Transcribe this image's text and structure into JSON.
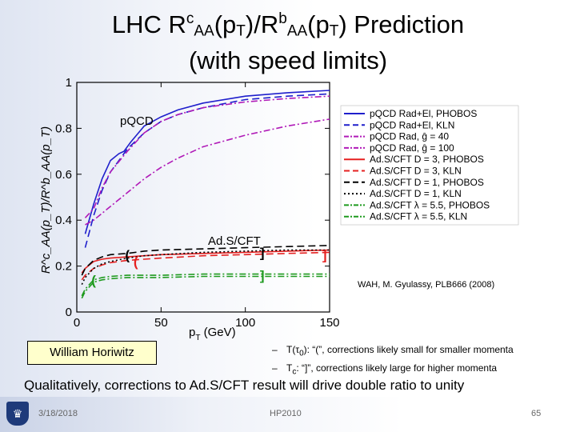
{
  "slide": {
    "title_line1_parts": [
      "LHC R",
      "c",
      "AA",
      "(p",
      "T",
      ")/R",
      "b",
      "AA",
      "(p",
      "T",
      ") Prediction"
    ],
    "title_line2": "(with speed limits)",
    "citation": "WAH, M. Gyulassy, PLB666 (2008)",
    "author_box": "William Horiwitz",
    "notes": [
      {
        "dash": "–",
        "sym_main": "T(τ",
        "sym_sub": "0",
        "text": "): “(”, corrections likely small for smaller momenta"
      },
      {
        "dash": "–",
        "sym_main": "T",
        "sym_sub": "c",
        "text": ": “]”, corrections likely large for higher momenta"
      }
    ],
    "conclusion": "Qualitatively, corrections to Ad.S/CFT result will drive double ratio to unity",
    "footer": {
      "date": "3/18/2018",
      "conference": "HP2010",
      "page": "65"
    }
  },
  "colors": {
    "blue": "#1f1fcc",
    "magenta": "#b01ab8",
    "red": "#e52020",
    "black": "#000000",
    "green": "#1e9a1e"
  },
  "chart_data": {
    "type": "line",
    "xlim": [
      0,
      150
    ],
    "ylim": [
      0,
      1
    ],
    "x_ticks": [
      0,
      50,
      100,
      150
    ],
    "y_ticks": [
      0,
      0.2,
      0.4,
      0.6,
      0.8,
      1
    ],
    "x_tick_labels": [
      "0",
      "50",
      "100",
      "150"
    ],
    "y_tick_labels": [
      "0",
      "0.2",
      "0.4",
      "0.6",
      "0.8",
      "1"
    ],
    "xlabel": {
      "main": "p",
      "sub": "T",
      "rest": " (GeV)"
    },
    "ylabel": "R^c_AA(p_T)/R^b_AA(p_T)",
    "annotations": {
      "pqcd": "pQCD",
      "ads": "Ad.S/CFT"
    },
    "legend_position": "right",
    "series": [
      {
        "name": "pQCD Rad+El, PHOBOS",
        "color": "blue",
        "dash": "solid",
        "x": [
          5,
          10,
          15,
          20,
          25,
          28,
          32,
          40,
          50,
          60,
          75,
          100,
          125,
          150
        ],
        "y": [
          0.34,
          0.47,
          0.58,
          0.66,
          0.69,
          0.7,
          0.74,
          0.81,
          0.85,
          0.88,
          0.91,
          0.94,
          0.955,
          0.965
        ]
      },
      {
        "name": "pQCD Rad+El, KLN",
        "color": "blue",
        "dash": "dash",
        "x": [
          5,
          10,
          15,
          20,
          25,
          30,
          40,
          50,
          60,
          75,
          100,
          125,
          150
        ],
        "y": [
          0.28,
          0.42,
          0.53,
          0.61,
          0.66,
          0.71,
          0.78,
          0.83,
          0.86,
          0.89,
          0.925,
          0.94,
          0.95
        ]
      },
      {
        "name": "pQCD Rad, ĝ = 40",
        "color": "magenta",
        "dash": "dashdot",
        "x": [
          5,
          10,
          15,
          20,
          30,
          40,
          50,
          60,
          75,
          100,
          125,
          150
        ],
        "y": [
          0.41,
          0.45,
          0.54,
          0.61,
          0.7,
          0.78,
          0.83,
          0.86,
          0.89,
          0.915,
          0.93,
          0.94
        ]
      },
      {
        "name": "pQCD Rad, ĝ = 100",
        "color": "magenta",
        "dash": "dashdot",
        "x": [
          5,
          10,
          15,
          20,
          30,
          40,
          50,
          60,
          75,
          100,
          125,
          150
        ],
        "y": [
          0.38,
          0.4,
          0.43,
          0.46,
          0.52,
          0.58,
          0.63,
          0.67,
          0.72,
          0.77,
          0.81,
          0.84
        ]
      },
      {
        "name": "Ad.S/CFT D = 3, PHOBOS",
        "color": "red",
        "dash": "solid",
        "x": [
          3,
          5,
          10,
          15,
          20,
          30,
          40,
          50,
          75,
          100,
          125,
          150
        ],
        "y": [
          0.17,
          0.19,
          0.22,
          0.23,
          0.235,
          0.24,
          0.245,
          0.25,
          0.255,
          0.26,
          0.265,
          0.27
        ]
      },
      {
        "name": "Ad.S/CFT D = 3, KLN",
        "color": "red",
        "dash": "dash",
        "x": [
          3,
          5,
          10,
          15,
          20,
          30,
          40,
          50,
          75,
          100,
          125,
          150
        ],
        "y": [
          0.14,
          0.16,
          0.19,
          0.205,
          0.215,
          0.225,
          0.23,
          0.235,
          0.245,
          0.25,
          0.255,
          0.26
        ]
      },
      {
        "name": "Ad.S/CFT D = 1, PHOBOS",
        "color": "black",
        "dash": "dash",
        "x": [
          3,
          5,
          10,
          15,
          20,
          30,
          40,
          50,
          75,
          100,
          125,
          150
        ],
        "y": [
          0.16,
          0.19,
          0.225,
          0.24,
          0.25,
          0.255,
          0.265,
          0.27,
          0.275,
          0.28,
          0.285,
          0.29
        ]
      },
      {
        "name": "Ad.S/CFT D = 1, KLN",
        "color": "black",
        "dash": "dot",
        "x": [
          3,
          5,
          10,
          15,
          20,
          30,
          40,
          50,
          75,
          100,
          125,
          150
        ],
        "y": [
          0.12,
          0.15,
          0.19,
          0.21,
          0.22,
          0.235,
          0.245,
          0.25,
          0.26,
          0.265,
          0.27,
          0.27
        ]
      },
      {
        "name": "Ad.S/CFT λ = 5.5, PHOBOS",
        "color": "green",
        "dash": "dashdot",
        "x": [
          3,
          5,
          10,
          15,
          20,
          30,
          40,
          50,
          75,
          100,
          125,
          150
        ],
        "y": [
          0.07,
          0.1,
          0.14,
          0.15,
          0.155,
          0.16,
          0.16,
          0.16,
          0.165,
          0.165,
          0.165,
          0.165
        ]
      },
      {
        "name": "Ad.S/CFT λ = 5.5, KLN",
        "color": "green",
        "dash": "dashdot",
        "x": [
          3,
          5,
          10,
          15,
          20,
          30,
          40,
          50,
          75,
          100,
          125,
          150
        ],
        "y": [
          0.06,
          0.09,
          0.13,
          0.14,
          0.145,
          0.15,
          0.15,
          0.15,
          0.155,
          0.155,
          0.155,
          0.155
        ]
      }
    ],
    "range_markers": [
      {
        "glyph": "(",
        "x": 35,
        "y": 0.22,
        "color": "red"
      },
      {
        "glyph": "]",
        "x": 147,
        "y": 0.25,
        "color": "red"
      },
      {
        "glyph": "(",
        "x": 30,
        "y": 0.25,
        "color": "black"
      },
      {
        "glyph": "]",
        "x": 110,
        "y": 0.26,
        "color": "black"
      },
      {
        "glyph": "(",
        "x": 10,
        "y": 0.14,
        "color": "green"
      },
      {
        "glyph": "]",
        "x": 110,
        "y": 0.16,
        "color": "green"
      }
    ]
  }
}
